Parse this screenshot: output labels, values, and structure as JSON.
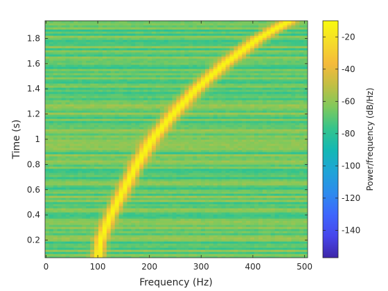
{
  "chart_data": {
    "type": "heatmap",
    "title": "",
    "xlabel": "Frequency (Hz)",
    "ylabel": "Time (s)",
    "xlim": [
      -2,
      506
    ],
    "ylim": [
      0.06,
      1.94
    ],
    "x_ticks": [
      0,
      100,
      200,
      300,
      400,
      500
    ],
    "y_ticks": [
      0.2,
      0.4,
      0.6,
      0.8,
      1,
      1.2,
      1.4,
      1.6,
      1.8
    ],
    "colorbar": {
      "label": "Power/frequency (dB/Hz)",
      "range": [
        -157,
        -10
      ],
      "ticks": [
        -140,
        -120,
        -100,
        -80,
        -60,
        -40,
        -20
      ],
      "colormap": "parula",
      "stops": [
        "#3e26a8",
        "#4746eb",
        "#3e66fd",
        "#2d8bed",
        "#1fa4d7",
        "#13b8b4",
        "#35c48c",
        "#7fc95c",
        "#c1bf44",
        "#f5ba3b",
        "#f5dc2a",
        "#f9fb0e"
      ]
    },
    "ridge": {
      "description_units": "frequency in Hz vs time in s",
      "points": [
        {
          "t": 0.06,
          "f": 100
        },
        {
          "t": 0.2,
          "f": 105
        },
        {
          "t": 0.4,
          "f": 125
        },
        {
          "t": 0.6,
          "f": 150
        },
        {
          "t": 0.8,
          "f": 175
        },
        {
          "t": 1.0,
          "f": 205
        },
        {
          "t": 1.2,
          "f": 245
        },
        {
          "t": 1.4,
          "f": 290
        },
        {
          "t": 1.6,
          "f": 345
        },
        {
          "t": 1.8,
          "f": 410
        },
        {
          "t": 1.94,
          "f": 470
        }
      ],
      "peak_db": -12,
      "background_db": -68
    }
  }
}
